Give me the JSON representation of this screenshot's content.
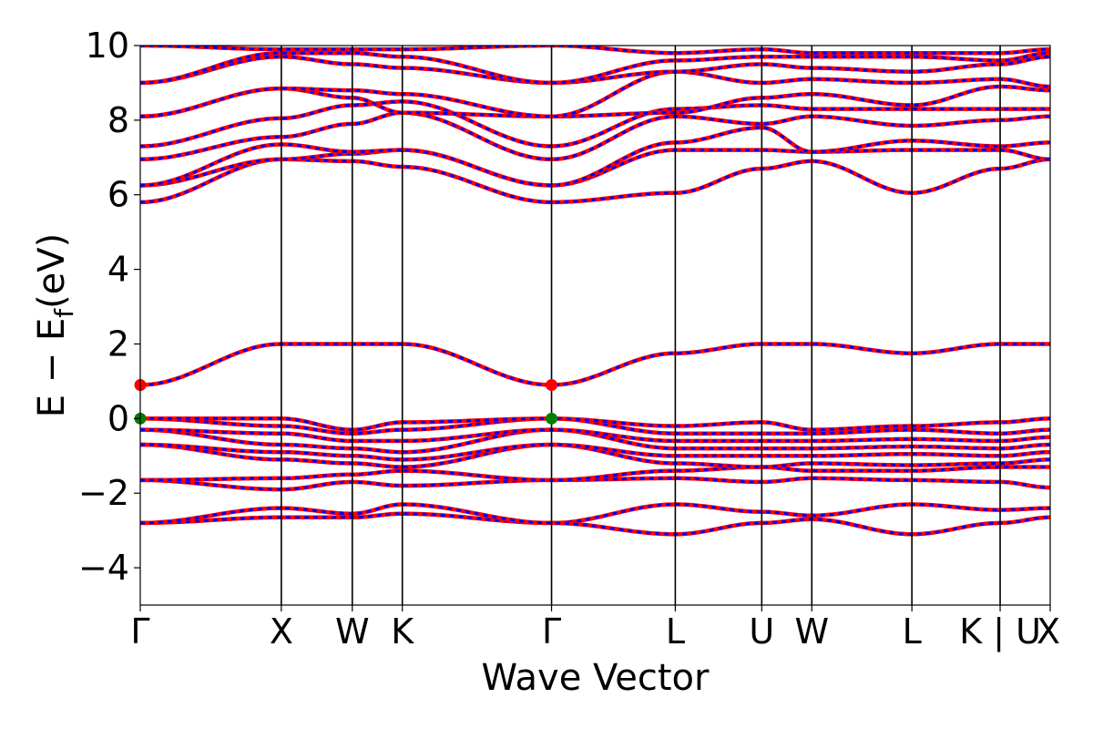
{
  "chart_data": {
    "type": "line",
    "title": "",
    "xlabel": "Wave Vector",
    "ylabel": "E − E",
    "ylabel_subscript": "f",
    "ylabel_unit": "(eV)",
    "ylim": [
      -5,
      10
    ],
    "yticks": [
      -4,
      -2,
      0,
      2,
      4,
      6,
      8,
      10
    ],
    "ytick_labels": [
      "−4",
      "−2",
      "0",
      "2",
      "4",
      "6",
      "8",
      "10"
    ],
    "xlim": [
      0,
      1
    ],
    "kpath": [
      {
        "label": "Γ",
        "x": 0.0
      },
      {
        "label": "X",
        "x": 0.155
      },
      {
        "label": "W",
        "x": 0.233
      },
      {
        "label": "K",
        "x": 0.288
      },
      {
        "label": "Γ",
        "x": 0.452
      },
      {
        "label": "L",
        "x": 0.588
      },
      {
        "label": "U",
        "x": 0.683
      },
      {
        "label": "W",
        "x": 0.738
      },
      {
        "label": "L",
        "x": 0.848
      },
      {
        "label": "K | U",
        "x": 0.945
      },
      {
        "label": "X",
        "x": 1.0
      }
    ],
    "band_colors": {
      "spin_up": "#ff0000",
      "spin_down": "#0000ff"
    },
    "bands": [
      {
        "name": "v1",
        "y": [
          -2.8,
          -2.65,
          -2.65,
          -2.55,
          -2.8,
          -2.3,
          -2.5,
          -2.6,
          -2.3,
          -2.45,
          -2.4
        ]
      },
      {
        "name": "v2",
        "y": [
          -2.8,
          -2.4,
          -2.55,
          -2.3,
          -2.8,
          -3.1,
          -2.8,
          -2.7,
          -3.1,
          -2.8,
          -2.65
        ]
      },
      {
        "name": "v3",
        "y": [
          -1.65,
          -1.9,
          -1.7,
          -1.8,
          -1.65,
          -1.6,
          -1.7,
          -1.6,
          -1.65,
          -1.7,
          -1.85
        ]
      },
      {
        "name": "v4",
        "y": [
          -1.65,
          -1.6,
          -1.5,
          -1.4,
          -1.65,
          -1.4,
          -1.3,
          -1.4,
          -1.4,
          -1.3,
          -1.3
        ]
      },
      {
        "name": "v5",
        "y": [
          -0.7,
          -1.1,
          -1.2,
          -1.3,
          -0.7,
          -1.2,
          -1.3,
          -1.2,
          -1.25,
          -1.2,
          -1.1
        ]
      },
      {
        "name": "v6",
        "y": [
          -0.7,
          -0.9,
          -1.0,
          -1.1,
          -0.7,
          -1.0,
          -1.0,
          -1.0,
          -0.95,
          -1.0,
          -0.9
        ]
      },
      {
        "name": "v7",
        "y": [
          -0.3,
          -0.7,
          -0.8,
          -0.9,
          -0.3,
          -0.8,
          -0.8,
          -0.8,
          -0.75,
          -0.8,
          -0.7
        ]
      },
      {
        "name": "v8",
        "y": [
          -0.3,
          -0.4,
          -0.6,
          -0.6,
          -0.3,
          -0.6,
          -0.6,
          -0.6,
          -0.55,
          -0.6,
          -0.5
        ]
      },
      {
        "name": "v9",
        "y": [
          0.0,
          -0.2,
          -0.4,
          -0.3,
          0.0,
          -0.4,
          -0.4,
          -0.4,
          -0.3,
          -0.4,
          -0.3
        ]
      },
      {
        "name": "v10",
        "y": [
          0.0,
          0.0,
          -0.3,
          -0.1,
          0.0,
          -0.2,
          -0.1,
          -0.3,
          -0.2,
          -0.1,
          0.0
        ]
      },
      {
        "name": "c1",
        "y": [
          0.9,
          2.0,
          2.0,
          2.0,
          0.9,
          1.75,
          2.0,
          2.0,
          1.75,
          2.0,
          2.0
        ]
      },
      {
        "name": "c2",
        "y": [
          5.8,
          6.95,
          6.9,
          6.75,
          5.8,
          6.05,
          6.7,
          6.9,
          6.05,
          6.7,
          6.95
        ]
      },
      {
        "name": "c3",
        "y": [
          6.25,
          6.95,
          7.1,
          7.2,
          6.25,
          7.2,
          7.2,
          7.15,
          7.2,
          7.2,
          6.95
        ]
      },
      {
        "name": "c4",
        "y": [
          6.25,
          7.35,
          7.15,
          7.2,
          6.25,
          7.4,
          7.8,
          7.15,
          7.45,
          7.3,
          7.4
        ]
      },
      {
        "name": "c5",
        "y": [
          6.95,
          7.55,
          7.9,
          8.2,
          6.95,
          8.1,
          7.9,
          8.1,
          7.85,
          8.0,
          8.1
        ]
      },
      {
        "name": "c6",
        "y": [
          7.3,
          8.05,
          8.4,
          8.5,
          7.3,
          8.3,
          8.4,
          8.3,
          8.3,
          8.3,
          8.3
        ]
      },
      {
        "name": "c7",
        "y": [
          8.1,
          8.85,
          8.6,
          8.2,
          8.1,
          8.2,
          8.6,
          8.7,
          8.4,
          8.9,
          8.8
        ]
      },
      {
        "name": "c8",
        "y": [
          8.1,
          8.85,
          8.8,
          8.7,
          8.1,
          9.3,
          9.0,
          9.1,
          9.0,
          9.1,
          8.9
        ]
      },
      {
        "name": "c9",
        "y": [
          9.0,
          9.7,
          9.5,
          9.4,
          9.0,
          9.3,
          9.5,
          9.4,
          9.3,
          9.5,
          9.7
        ]
      },
      {
        "name": "c10",
        "y": [
          9.0,
          9.8,
          9.8,
          9.7,
          9.0,
          9.6,
          9.7,
          9.7,
          9.7,
          9.6,
          9.8
        ]
      },
      {
        "name": "c11",
        "y": [
          10.0,
          9.9,
          9.9,
          9.9,
          10.0,
          9.8,
          9.9,
          9.8,
          9.8,
          9.8,
          9.9
        ]
      }
    ],
    "markers": [
      {
        "name": "cbm",
        "x": 0.0,
        "y": 0.9,
        "color": "#ff0000"
      },
      {
        "name": "cbm",
        "x": 0.452,
        "y": 0.9,
        "color": "#ff0000"
      },
      {
        "name": "vbm",
        "x": 0.0,
        "y": 0.0,
        "color": "#008000"
      },
      {
        "name": "vbm",
        "x": 0.452,
        "y": 0.0,
        "color": "#008000"
      }
    ]
  }
}
